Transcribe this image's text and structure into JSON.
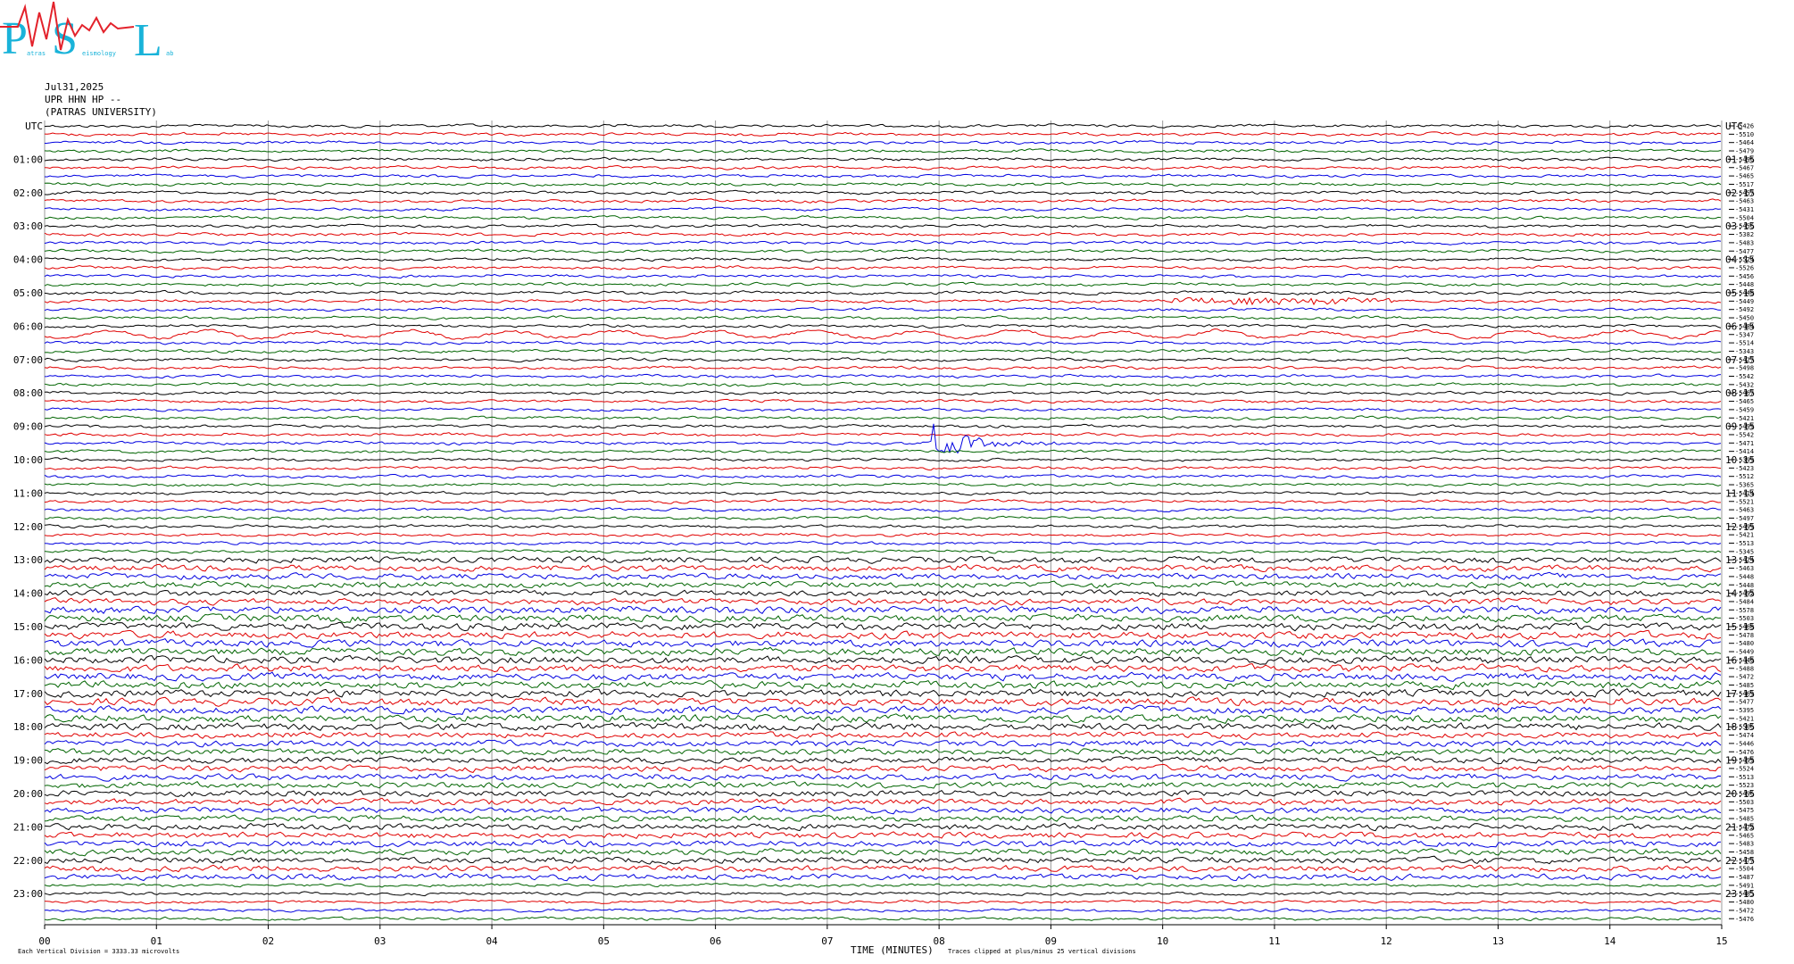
{
  "logo": {
    "big": [
      "P",
      "S",
      "L"
    ],
    "small": [
      "atras",
      "eismology",
      "ab"
    ]
  },
  "header": {
    "date": "Jul31,2025",
    "station": "UPR HHN HP --",
    "institution": "(PATRAS UNIVERSITY)"
  },
  "left_labels": [
    "UTC",
    "01:00",
    "02:00",
    "03:00",
    "04:00",
    "05:00",
    "06:00",
    "07:00",
    "08:00",
    "09:00",
    "10:00",
    "11:00",
    "12:00",
    "13:00",
    "14:00",
    "15:00",
    "16:00",
    "17:00",
    "18:00",
    "19:00",
    "20:00",
    "21:00",
    "22:00",
    "23:00"
  ],
  "right_labels": [
    "UTC",
    "01:15",
    "02:15",
    "03:15",
    "04:15",
    "05:15",
    "06:15",
    "07:15",
    "08:15",
    "09:15",
    "10:15",
    "11:15",
    "12:15",
    "13:15",
    "14:15",
    "15:15",
    "16:15",
    "17:15",
    "18:15",
    "19:15",
    "20:15",
    "21:15",
    "22:15",
    "23:15"
  ],
  "trace_offsets": [
    -5426,
    -5510,
    -5464,
    -5479,
    -5496,
    -5467,
    -5465,
    -5517,
    -5457,
    -5463,
    -5431,
    -5504,
    -5456,
    -5382,
    -5483,
    -5477,
    -5524,
    -5526,
    -5456,
    -5448,
    -5448,
    -5449,
    -5492,
    -5450,
    -5484,
    -5347,
    -5514,
    -5343,
    -5427,
    -5498,
    -5542,
    -5432,
    -5467,
    -5465,
    -5459,
    -5421,
    -5499,
    -5542,
    -5471,
    -5414,
    -5399,
    -5423,
    -5512,
    -5365,
    -5414,
    -5521,
    -5463,
    -5497,
    -5499,
    -5421,
    -5513,
    -5345,
    -5424,
    -5463,
    -5448,
    -5448,
    -5492,
    -5484,
    -5578,
    -5503,
    -5468,
    -5478,
    -5480,
    -5449,
    -5440,
    -5488,
    -5472,
    -5485,
    -5469,
    -5477,
    -5395,
    -5421,
    -5506,
    -5474,
    -5446,
    -5476,
    -5499,
    -5524,
    -5513,
    -5523,
    -5496,
    -5503,
    -5475,
    -5485,
    -5472,
    -5465,
    -5483,
    -5458,
    -5477,
    -5504,
    -5487,
    -5491,
    -5485,
    -5480,
    -5472,
    -5476
  ],
  "x_ticks": [
    "00",
    "01",
    "02",
    "03",
    "04",
    "05",
    "06",
    "07",
    "08",
    "09",
    "10",
    "11",
    "12",
    "13",
    "14",
    "15"
  ],
  "footer": {
    "scale": "Each Vertical Division = 3333.33 microvolts",
    "axis_title": "TIME (MINUTES)",
    "clip_note": "Traces clipped at plus/minus 25 vertical divisions"
  }
}
